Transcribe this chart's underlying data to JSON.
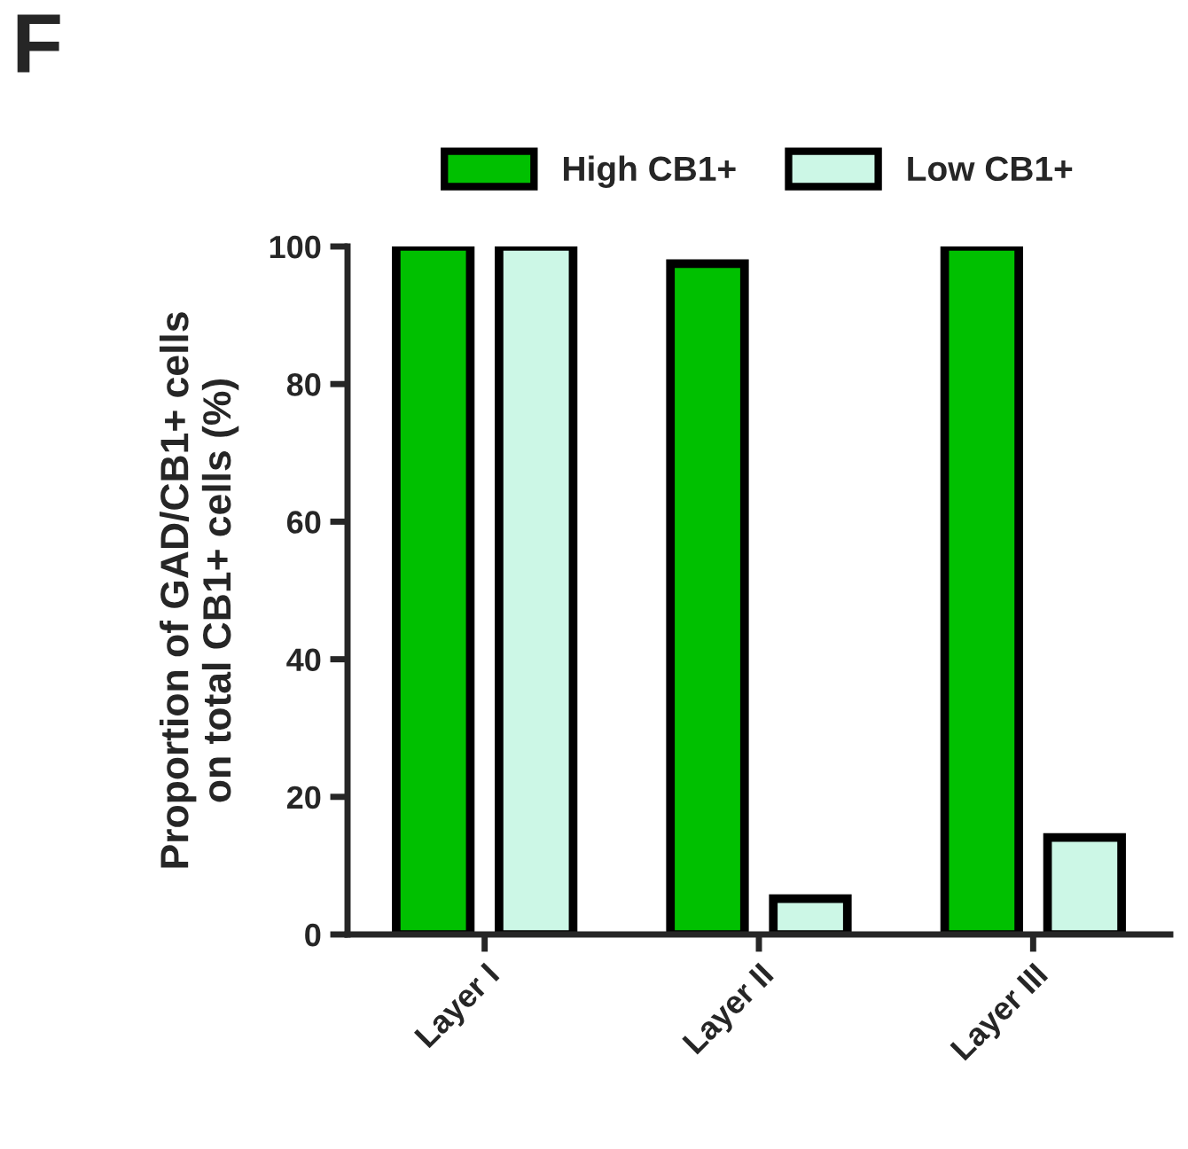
{
  "chart_data": {
    "type": "bar",
    "ylabel": "Proportion of GAD/CB1+ cells\non total CB1+ cells (%)",
    "categories": [
      "Layer I",
      "Layer II",
      "Layer III"
    ],
    "series": [
      {
        "name": "High CB1+",
        "color": "#00c000",
        "values": [
          100,
          97.5,
          100
        ]
      },
      {
        "name": "Low CB1+",
        "color": "#ccf7e6",
        "values": [
          100,
          5.2,
          14.1
        ]
      }
    ],
    "ylim": [
      0,
      100
    ],
    "yticks": [
      0,
      20,
      40,
      60,
      80,
      100
    ],
    "grid": false,
    "legend": "top",
    "annotations": [
      "F"
    ]
  }
}
